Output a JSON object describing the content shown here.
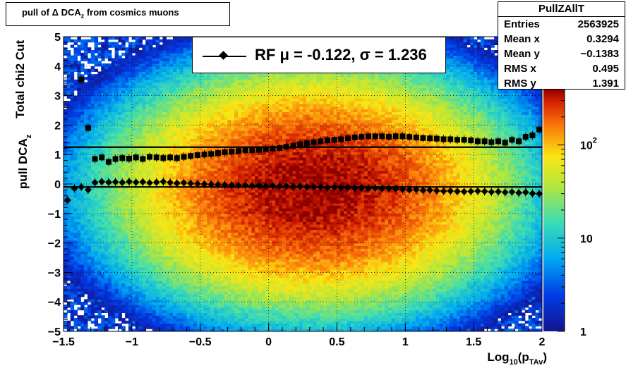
{
  "title": {
    "prefix": "pull of ",
    "delta": "Δ",
    "mid": " DCA",
    "sub": "z",
    "suffix": " from cosmics muons"
  },
  "stats": {
    "name": "PullZAllT",
    "rows": [
      {
        "label": "Entries",
        "value": "2563925"
      },
      {
        "label": "Mean x",
        "value": "0.3294"
      },
      {
        "label": "Mean y",
        "value": "−0.1383"
      },
      {
        "label": "RMS x",
        "value": "0.495"
      },
      {
        "label": "RMS y",
        "value": "1.391"
      }
    ]
  },
  "legend": {
    "text": "RF μ = -0.122, σ =   1.236"
  },
  "colors": {
    "mean_line": "#000000",
    "rms_line": "#000000",
    "marker": "#000000"
  },
  "chart_data": {
    "type": "heatmap",
    "xlabel": "Log",
    "xlabel_sub1": "10",
    "xlabel_mid": "(p",
    "xlabel_sub2": "TAv",
    "xlabel_end": ")",
    "ylabel_main": "pull DCA",
    "ylabel_sub": "z",
    "ylabel_extra": "Total chi2 Cut",
    "xlim": [
      -1.5,
      2
    ],
    "ylim": [
      -5,
      5
    ],
    "xticks": [
      -1.5,
      -1,
      -0.5,
      0,
      0.5,
      1,
      1.5,
      2
    ],
    "xtick_labels": [
      "−1.5",
      "−1",
      "−0.5",
      "0",
      "0.5",
      "1",
      "1.5",
      "2"
    ],
    "yticks": [
      -5,
      -4,
      -3,
      -2,
      -1,
      0,
      1,
      2,
      3,
      4,
      5
    ],
    "ytick_labels": [
      "−5",
      "−4",
      "−3",
      "−2",
      "−1",
      "0",
      "1",
      "2",
      "3",
      "4",
      "5"
    ],
    "grid": true,
    "colorbar": {
      "scale": "log",
      "min": 1,
      "max": 400,
      "labels": [
        {
          "value": 1,
          "text": "1"
        },
        {
          "value": 10,
          "text": "10"
        },
        {
          "value": 100,
          "text": "10",
          "exp": "2"
        }
      ]
    },
    "density_center": {
      "x": 0.33,
      "y": -0.14,
      "rms_x": 0.495,
      "rms_y": 1.391
    },
    "mean_fit": {
      "mu": -0.122,
      "x": [
        -1.5,
        2
      ],
      "y": [
        -0.1,
        -0.1
      ]
    },
    "sigma_fit": {
      "sigma": 1.236,
      "x": [
        -1.5,
        2
      ],
      "y": [
        1.25,
        1.25
      ]
    },
    "series": [
      {
        "marker": "diamond",
        "x": [
          -1.47,
          -1.42,
          -1.37,
          -1.32,
          -1.27,
          -1.22,
          -1.17,
          -1.12,
          -1.07,
          -1.02,
          -0.97,
          -0.92,
          -0.87,
          -0.82,
          -0.77,
          -0.72,
          -0.67,
          -0.62,
          -0.57,
          -0.52,
          -0.47,
          -0.42,
          -0.37,
          -0.32,
          -0.27,
          -0.22,
          -0.17,
          -0.12,
          -0.07,
          -0.02,
          0.03,
          0.08,
          0.13,
          0.18,
          0.23,
          0.28,
          0.33,
          0.38,
          0.43,
          0.48,
          0.53,
          0.58,
          0.63,
          0.68,
          0.73,
          0.78,
          0.83,
          0.88,
          0.93,
          0.98,
          1.03,
          1.08,
          1.13,
          1.18,
          1.23,
          1.28,
          1.33,
          1.38,
          1.43,
          1.48,
          1.53,
          1.58,
          1.63,
          1.68,
          1.73,
          1.78,
          1.83,
          1.88,
          1.93,
          1.98
        ],
        "y": [
          -0.55,
          -0.15,
          -0.1,
          -0.2,
          0.05,
          0.08,
          0.06,
          0.07,
          0.05,
          0.08,
          0.06,
          0.07,
          0.04,
          0.06,
          0.08,
          0.05,
          0.03,
          0.04,
          0.02,
          0.01,
          0.0,
          -0.01,
          -0.02,
          -0.03,
          -0.04,
          -0.05,
          -0.04,
          -0.06,
          -0.05,
          -0.07,
          -0.06,
          -0.08,
          -0.07,
          -0.09,
          -0.08,
          -0.1,
          -0.09,
          -0.1,
          -0.12,
          -0.11,
          -0.13,
          -0.12,
          -0.14,
          -0.13,
          -0.15,
          -0.14,
          -0.16,
          -0.15,
          -0.17,
          -0.18,
          -0.2,
          -0.19,
          -0.22,
          -0.21,
          -0.23,
          -0.24,
          -0.24,
          -0.25,
          -0.26,
          -0.25,
          -0.24,
          -0.25,
          -0.27,
          -0.26,
          -0.28,
          -0.27,
          -0.3,
          -0.28,
          -0.32,
          -0.33
        ]
      },
      {
        "marker": "square",
        "x": [
          -1.37,
          -1.32,
          -1.27,
          -1.22,
          -1.17,
          -1.12,
          -1.07,
          -1.02,
          -0.97,
          -0.92,
          -0.87,
          -0.82,
          -0.77,
          -0.72,
          -0.67,
          -0.62,
          -0.57,
          -0.52,
          -0.47,
          -0.42,
          -0.37,
          -0.32,
          -0.27,
          -0.22,
          -0.17,
          -0.12,
          -0.07,
          -0.02,
          0.03,
          0.08,
          0.13,
          0.18,
          0.23,
          0.28,
          0.33,
          0.38,
          0.43,
          0.48,
          0.53,
          0.58,
          0.63,
          0.68,
          0.73,
          0.78,
          0.83,
          0.88,
          0.93,
          0.98,
          1.03,
          1.08,
          1.13,
          1.18,
          1.23,
          1.28,
          1.33,
          1.38,
          1.43,
          1.48,
          1.53,
          1.58,
          1.63,
          1.68,
          1.73,
          1.78,
          1.83,
          1.88,
          1.93,
          1.98
        ],
        "y": [
          3.55,
          1.9,
          0.85,
          0.9,
          0.75,
          0.85,
          0.88,
          0.86,
          0.9,
          0.85,
          0.92,
          0.9,
          0.88,
          0.9,
          0.88,
          0.92,
          0.95,
          0.98,
          1.0,
          1.02,
          1.05,
          1.08,
          1.1,
          1.12,
          1.14,
          1.15,
          1.16,
          1.18,
          1.2,
          1.22,
          1.26,
          1.3,
          1.35,
          1.38,
          1.42,
          1.45,
          1.48,
          1.5,
          1.52,
          1.55,
          1.58,
          1.6,
          1.62,
          1.62,
          1.62,
          1.6,
          1.62,
          1.62,
          1.6,
          1.58,
          1.56,
          1.55,
          1.54,
          1.52,
          1.52,
          1.5,
          1.5,
          1.48,
          1.45,
          1.45,
          1.42,
          1.45,
          1.4,
          1.5,
          1.45,
          1.6,
          1.65,
          1.85
        ]
      }
    ]
  }
}
